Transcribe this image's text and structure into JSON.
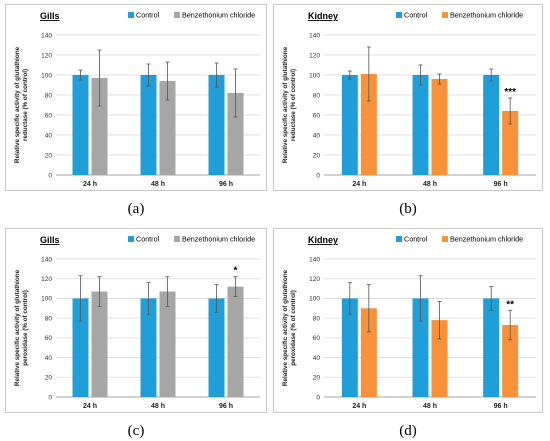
{
  "colors": {
    "control": "#1f9ed8",
    "gills_treat": "#a6a6a6",
    "kidney_treat": "#f7923a",
    "grid": "#d9d9d9",
    "axis": "#888888",
    "text": "#333333"
  },
  "chart_data": [
    {
      "type": "bar",
      "title": "Gills",
      "caption": "(a)",
      "ylabel_line1": "Relative specific activity of glutathione",
      "ylabel_line2": "reductase (% of control)",
      "ylim": [
        0,
        140
      ],
      "yticks": [
        "0",
        "20",
        "40",
        "60",
        "80",
        "100",
        "120",
        "140"
      ],
      "categories": [
        "24 h",
        "48 h",
        "96 h"
      ],
      "series": [
        {
          "name": "Control",
          "color_key": "control",
          "values": [
            100,
            100,
            100
          ],
          "errors": [
            5,
            11,
            12
          ]
        },
        {
          "name": "Benzethonium chloride",
          "color_key": "gills_treat",
          "values": [
            97,
            94,
            82
          ],
          "errors": [
            28,
            19,
            24
          ]
        }
      ],
      "annotations": [
        "",
        "",
        ""
      ],
      "grid": true,
      "legend": "top-right"
    },
    {
      "type": "bar",
      "title": "Kidney",
      "caption": "(b)",
      "ylabel_line1": "Relative specific activity of glutathione",
      "ylabel_line2": "reductase (% of control)",
      "ylim": [
        0,
        140
      ],
      "yticks": [
        "0",
        "20",
        "40",
        "60",
        "80",
        "100",
        "120",
        "140"
      ],
      "categories": [
        "24 h",
        "48 h",
        "96 h"
      ],
      "series": [
        {
          "name": "Control",
          "color_key": "control",
          "values": [
            100,
            100,
            100
          ],
          "errors": [
            4,
            10,
            6
          ]
        },
        {
          "name": "Benzethonium chloride",
          "color_key": "kidney_treat",
          "values": [
            101,
            96,
            64
          ],
          "errors": [
            27,
            5,
            13
          ]
        }
      ],
      "annotations": [
        "",
        "",
        "***"
      ],
      "grid": true,
      "legend": "top-right"
    },
    {
      "type": "bar",
      "title": "Gills",
      "caption": "(c)",
      "ylabel_line1": "Relative specific activity of glutathione",
      "ylabel_line2": "peroxidase (% of control)",
      "ylim": [
        0,
        140
      ],
      "yticks": [
        "0",
        "20",
        "40",
        "60",
        "80",
        "100",
        "120",
        "140"
      ],
      "categories": [
        "24 h",
        "48 h",
        "96 h"
      ],
      "series": [
        {
          "name": "Control",
          "color_key": "control",
          "values": [
            100,
            100,
            100
          ],
          "errors": [
            23,
            16,
            14
          ]
        },
        {
          "name": "Benzethonium chloride",
          "color_key": "gills_treat",
          "values": [
            107,
            107,
            112
          ],
          "errors": [
            15,
            15,
            10
          ]
        }
      ],
      "annotations": [
        "",
        "",
        "*"
      ],
      "grid": true,
      "legend": "top-right"
    },
    {
      "type": "bar",
      "title": "Kidney",
      "caption": "(d)",
      "ylabel_line1": "Relative specific activity of glutathione",
      "ylabel_line2": "peroxidase (% of control)",
      "ylim": [
        0,
        140
      ],
      "yticks": [
        "0",
        "20",
        "40",
        "60",
        "80",
        "100",
        "120",
        "140"
      ],
      "categories": [
        "24 h",
        "48 h",
        "96 h"
      ],
      "series": [
        {
          "name": "Control",
          "color_key": "control",
          "values": [
            100,
            100,
            100
          ],
          "errors": [
            16,
            23,
            12
          ]
        },
        {
          "name": "Benzethonium chloride",
          "color_key": "kidney_treat",
          "values": [
            90,
            78,
            73
          ],
          "errors": [
            24,
            19,
            15
          ]
        }
      ],
      "annotations": [
        "",
        "",
        "**"
      ],
      "grid": true,
      "legend": "top-right"
    }
  ]
}
